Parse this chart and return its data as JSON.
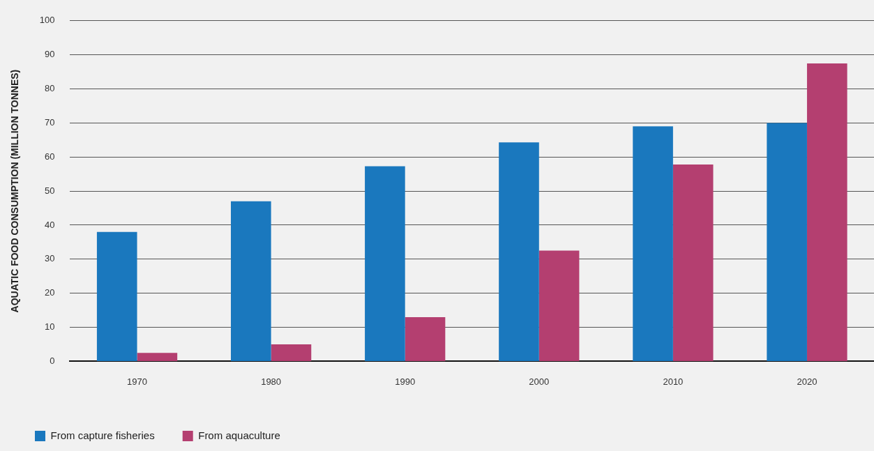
{
  "chart_data": {
    "type": "bar",
    "ylabel": "AQUATIC FOOD CONSUMPTION (MILLION TONNES)",
    "categories": [
      "1970",
      "1980",
      "1990",
      "2000",
      "2010",
      "2020"
    ],
    "series": [
      {
        "name": "From capture fisheries",
        "color": "#1a78be",
        "values": [
          38,
          47,
          57.3,
          64.3,
          69,
          70
        ]
      },
      {
        "name": "From aquaculture",
        "color": "#b43f70",
        "values": [
          2.5,
          5,
          13,
          32.5,
          57.8,
          87.5
        ]
      }
    ],
    "ylim": [
      0,
      100
    ],
    "yticks": [
      0,
      10,
      20,
      30,
      40,
      50,
      60,
      70,
      80,
      90,
      100
    ],
    "grid": "y",
    "legend": "bottom left"
  }
}
